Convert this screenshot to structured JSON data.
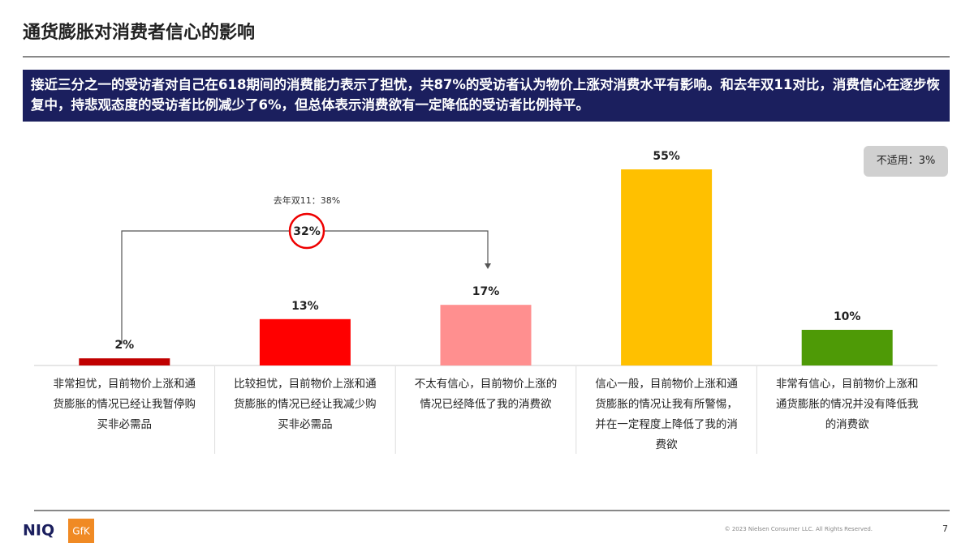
{
  "header": {
    "title": "通货膨胀对消费者信心的影响",
    "summary": "接近三分之一的受访者对自己在618期间的消费能力表示了担忧，共87%的受访者认为物价上涨对消费水平有影响。和去年双11对比，消费信心在逐步恢复中，持悲观态度的受访者比例减少了6%，但总体表示消费欲有一定降低的受访者比例持平。"
  },
  "chart_data": {
    "type": "bar",
    "categories": [
      "非常担忧，目前物价上涨和通货膨胀的情况已经让我暂停购买非必需品",
      "比较担忧，目前物价上涨和通货膨胀的情况已经让我减少购买非必需品",
      "不太有信心，目前物价上涨的情况已经降低了我的消费欲",
      "信心一般，目前物价上涨和通货膨胀的情况让我有所警惕，并在一定程度上降低了我的消费欲",
      "非常有信心，目前物价上涨和通货膨胀的情况并没有降低我的消费欲"
    ],
    "values": [
      2,
      13,
      17,
      55,
      10
    ],
    "value_labels": [
      "2%",
      "13%",
      "17%",
      "55%",
      "10%"
    ],
    "colors": [
      "#c00000",
      "#ff0000",
      "#ff8f8f",
      "#ffc000",
      "#4e9a06"
    ],
    "annotations": {
      "last_year": "去年双11：38%",
      "combined": "32%",
      "not_applicable": "不适用：3%"
    }
  },
  "footer": {
    "copyright": "© 2023 Nielsen Consumer LLC. All Rights Reserved.",
    "page": "7",
    "logo": "NIQ",
    "partner_logo": "GfK"
  }
}
